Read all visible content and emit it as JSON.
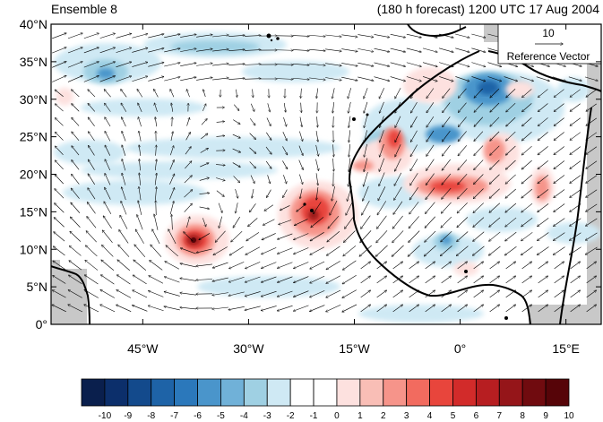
{
  "header": {
    "ensemble_label": "Ensemble 8",
    "forecast_label": "(180 h forecast) 1200 UTC 17 Aug 2004"
  },
  "map": {
    "lat_ticks": [
      "0°",
      "5°N",
      "10°N",
      "15°N",
      "20°N",
      "25°N",
      "30°N",
      "35°N",
      "40°N"
    ],
    "lon_ticks": [
      "45°W",
      "30°W",
      "15°W",
      "0°",
      "15°E"
    ],
    "lon_values": [
      -45,
      -30,
      -15,
      0,
      15
    ],
    "lat_values": [
      0,
      5,
      10,
      15,
      20,
      25,
      30,
      35,
      40
    ],
    "lon_range": [
      -58,
      20
    ],
    "lat_range": [
      0,
      40
    ]
  },
  "reference_vector": {
    "magnitude": "10",
    "label": "Reference Vector"
  },
  "colorbar": {
    "labels": [
      "-10",
      "-9",
      "-8",
      "-7",
      "-6",
      "-5",
      "-4",
      "-3",
      "-2",
      "-1",
      "0",
      "1",
      "2",
      "3",
      "4",
      "5",
      "6",
      "7",
      "8",
      "9",
      "10"
    ],
    "colors": [
      "#0a1f4d",
      "#0c2f6b",
      "#134a8c",
      "#1e63a7",
      "#2b78bb",
      "#4a95cb",
      "#70b1d8",
      "#9fd0e3",
      "#cfe9f4",
      "#ffffff",
      "#ffffff",
      "#fde1df",
      "#f9beb6",
      "#f6948a",
      "#f26b5f",
      "#e8453c",
      "#d22b2a",
      "#b71e21",
      "#951519",
      "#700b0f",
      "#560408"
    ]
  },
  "colors": {
    "land_mask": "#c8c8c8",
    "coast": "#000000"
  }
}
